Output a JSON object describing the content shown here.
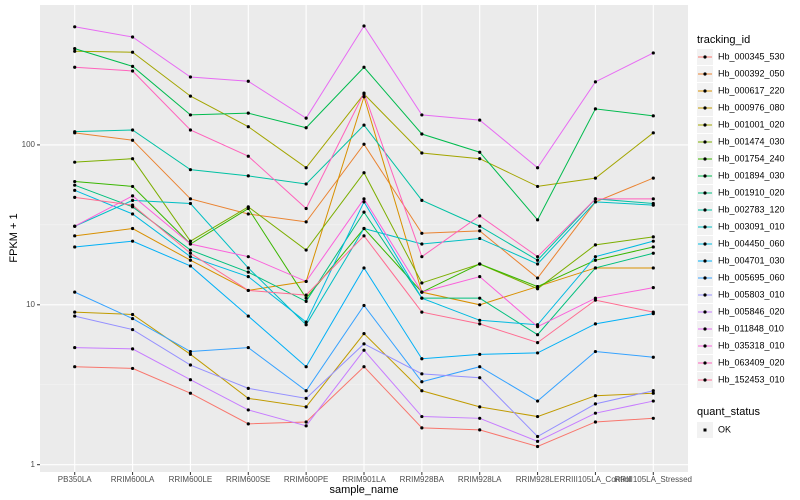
{
  "chart_data": {
    "type": "line",
    "log_y": true,
    "grid": true,
    "x_label": "sample_name",
    "y_label": "FPKM + 1",
    "legend_title": "tracking_id",
    "legend_position": "right",
    "point_legend": {
      "title": "quant_status",
      "levels": [
        "OK"
      ],
      "color": "#000000"
    },
    "categories": [
      "PB350LA",
      "RRIM600LA",
      "RRIM600LE",
      "RRIM600SE",
      "RRIM600PE",
      "RRIM901LA",
      "RRIM928BA",
      "RRIM928LA",
      "RRIM928LE",
      "RRIII105LA_Control",
      "RRIII105LA_Stressed"
    ],
    "ylim": [
      0.9,
      750
    ],
    "yticks": [
      1,
      10,
      100
    ],
    "series": [
      {
        "name": "Hb_000345_530",
        "color": "#F8766D",
        "values": [
          4.1,
          4.0,
          2.8,
          1.8,
          1.85,
          4.1,
          1.7,
          1.65,
          1.3,
          1.85,
          1.95
        ]
      },
      {
        "name": "Hb_000392_050",
        "color": "#EA8331",
        "values": [
          119,
          107,
          46,
          37,
          33,
          101,
          28,
          29,
          14.7,
          44,
          62
        ]
      },
      {
        "name": "Hb_000617_220",
        "color": "#D89000",
        "values": [
          27,
          30,
          19,
          12.3,
          14,
          200,
          12,
          10,
          13,
          17,
          17
        ]
      },
      {
        "name": "Hb_000976_080",
        "color": "#C09B00",
        "values": [
          9,
          8.7,
          4.9,
          2.6,
          2.3,
          6.6,
          2.9,
          2.3,
          2.0,
          2.7,
          2.8
        ]
      },
      {
        "name": "Hb_001001_020",
        "color": "#A3A500",
        "values": [
          385,
          380,
          202,
          130,
          72,
          208,
          89,
          82,
          55,
          62,
          119
        ]
      },
      {
        "name": "Hb_001474_030",
        "color": "#7CAE00",
        "values": [
          78,
          82,
          25,
          41,
          22,
          67,
          13.7,
          18,
          12.6,
          23.7,
          26.6
        ]
      },
      {
        "name": "Hb_001754_240",
        "color": "#39B600",
        "values": [
          59,
          55,
          24,
          40,
          11,
          30,
          12,
          18,
          13,
          19,
          23
        ]
      },
      {
        "name": "Hb_001894_030",
        "color": "#00BB4E",
        "values": [
          400,
          310,
          154,
          158,
          128,
          306,
          117,
          90,
          34,
          168,
          152
        ]
      },
      {
        "name": "Hb_001910_020",
        "color": "#00BF7D",
        "values": [
          56,
          41,
          22,
          16,
          10.5,
          38,
          11,
          11,
          6.5,
          17,
          21
        ]
      },
      {
        "name": "Hb_002783_120",
        "color": "#00C1A3",
        "values": [
          121,
          124,
          70,
          64,
          57,
          133,
          45,
          31,
          19,
          46,
          43
        ]
      },
      {
        "name": "Hb_003091_010",
        "color": "#00BFC4",
        "values": [
          31,
          45,
          43,
          17,
          7.5,
          30,
          24,
          26,
          18,
          44,
          42
        ]
      },
      {
        "name": "Hb_004450_060",
        "color": "#00BAE0",
        "values": [
          52,
          37,
          20,
          15,
          7.8,
          44,
          11,
          8,
          7.5,
          20,
          25
        ]
      },
      {
        "name": "Hb_004701_030",
        "color": "#00B0F6",
        "values": [
          23,
          25,
          17.5,
          8.5,
          4.1,
          17,
          4.6,
          4.9,
          5,
          7.6,
          8.8
        ]
      },
      {
        "name": "Hb_005695_060",
        "color": "#35A2FF",
        "values": [
          12,
          8.2,
          5.1,
          5.4,
          2.9,
          9.9,
          3.3,
          4.1,
          2.5,
          5.1,
          4.7
        ]
      },
      {
        "name": "Hb_005803_010",
        "color": "#9590FF",
        "values": [
          8.5,
          7,
          4.2,
          3,
          2.6,
          5.7,
          3.7,
          3.5,
          1.5,
          2.4,
          2.9
        ]
      },
      {
        "name": "Hb_005846_020",
        "color": "#C77CFF",
        "values": [
          5.4,
          5.3,
          3.4,
          2.2,
          1.75,
          5.2,
          2,
          1.95,
          1.4,
          2.1,
          2.5
        ]
      },
      {
        "name": "Hb_011848_010",
        "color": "#E76BF3",
        "values": [
          548,
          473,
          266,
          250,
          147,
          554,
          154,
          143,
          72,
          248,
          376
        ]
      },
      {
        "name": "Hb_035318_010",
        "color": "#FA62DB",
        "values": [
          31,
          48,
          24,
          20,
          14,
          46,
          12,
          15,
          7.3,
          11,
          12.8
        ]
      },
      {
        "name": "Hb_063409_020",
        "color": "#FF62BC",
        "values": [
          306,
          290,
          124,
          85,
          40,
          211,
          20,
          36,
          20,
          46,
          46
        ]
      },
      {
        "name": "Hb_152453_010",
        "color": "#FF6C91",
        "values": [
          47,
          42,
          21,
          12.3,
          11.5,
          27,
          9,
          7.6,
          5.8,
          10.7,
          9
        ]
      }
    ]
  }
}
